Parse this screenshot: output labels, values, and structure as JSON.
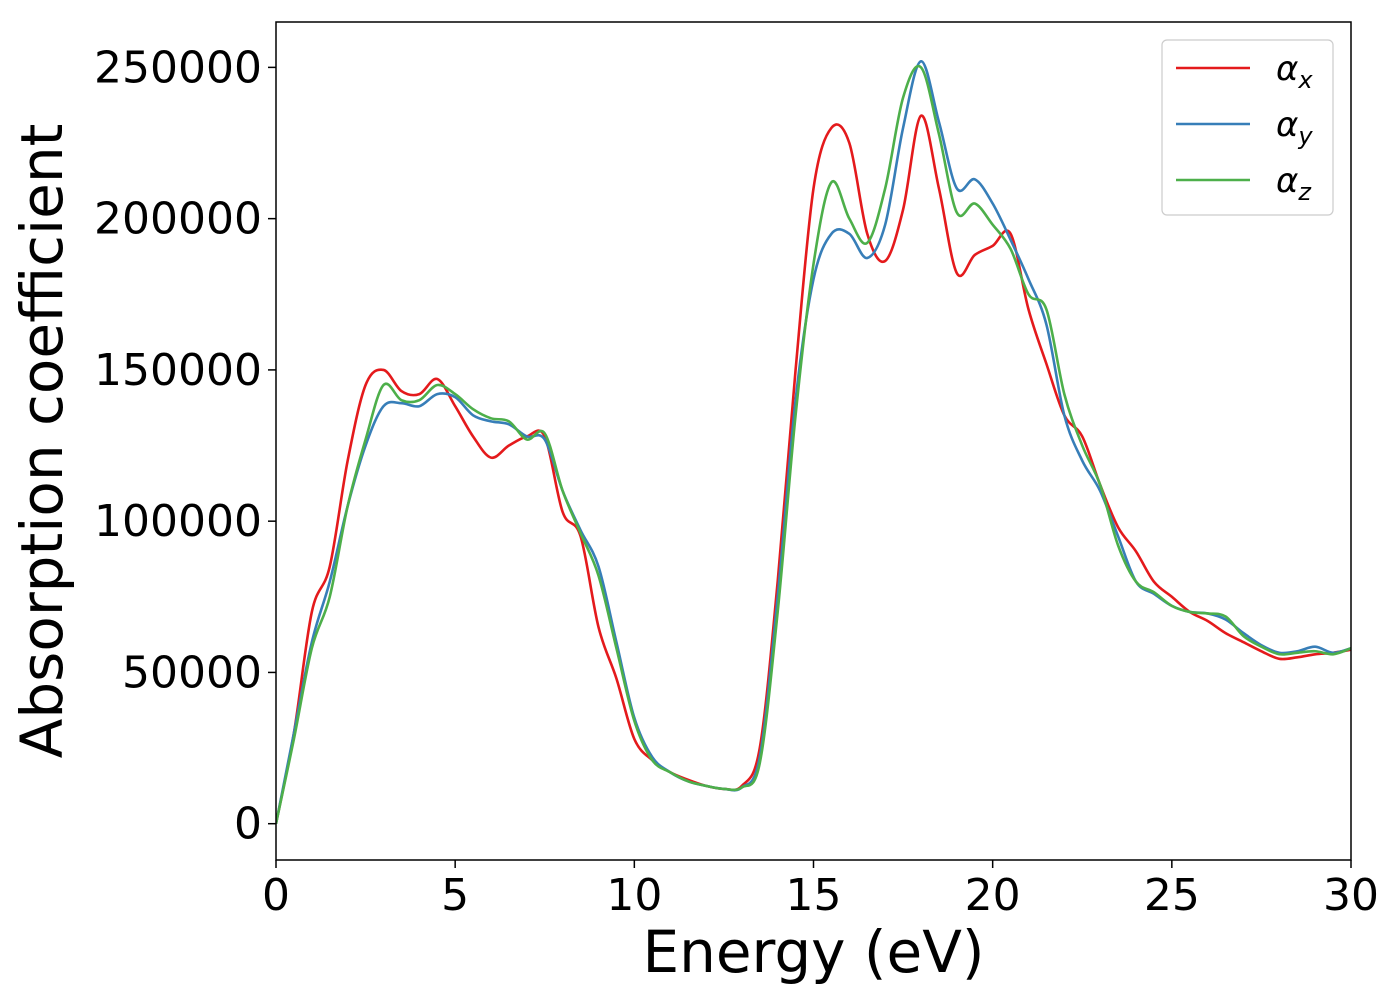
{
  "chart_data": {
    "type": "line",
    "xlabel": "Energy (eV)",
    "ylabel": "Absorption coefficient",
    "xlim": [
      0,
      30
    ],
    "ylim": [
      -12000,
      265000
    ],
    "xticks": [
      0,
      5,
      10,
      15,
      20,
      25,
      30
    ],
    "xtick_labels": [
      "0",
      "5",
      "10",
      "15",
      "20",
      "25",
      "30"
    ],
    "yticks": [
      0,
      50000,
      100000,
      150000,
      200000,
      250000
    ],
    "ytick_labels": [
      "0",
      "50000",
      "100000",
      "150000",
      "200000",
      "250000"
    ],
    "grid": false,
    "legend_position": "top-right",
    "series": [
      {
        "name": "α",
        "subscript": "x",
        "color": "#e41a1c",
        "x": [
          0,
          0.5,
          1,
          1.5,
          2,
          2.5,
          3,
          3.5,
          4,
          4.5,
          5,
          5.5,
          6,
          6.5,
          7,
          7.5,
          8,
          8.5,
          9,
          9.5,
          10,
          10.5,
          11,
          11.5,
          12,
          12.5,
          13,
          13.5,
          14,
          14.5,
          15,
          15.5,
          16,
          16.5,
          17,
          17.5,
          18,
          18.5,
          19,
          19.5,
          20,
          20.5,
          21,
          21.5,
          22,
          22.5,
          23,
          23.5,
          24,
          24.5,
          25,
          25.5,
          26,
          26.5,
          27,
          27.5,
          28,
          28.5,
          29,
          29.5,
          30
        ],
        "y": [
          0,
          30000,
          70000,
          85000,
          120000,
          145000,
          150000,
          143000,
          142000,
          147000,
          138000,
          128000,
          121000,
          125000,
          128000,
          128000,
          103000,
          95000,
          65000,
          48000,
          28000,
          21000,
          17000,
          14500,
          12500,
          11500,
          12500,
          25000,
          80000,
          150000,
          210000,
          230000,
          225000,
          195000,
          186000,
          203000,
          234000,
          210000,
          182000,
          188000,
          191000,
          195000,
          170000,
          152000,
          135000,
          128000,
          112000,
          98000,
          90000,
          80000,
          75000,
          70000,
          67000,
          63000,
          60000,
          57000,
          54500,
          55000,
          56000,
          56500,
          57500
        ]
      },
      {
        "name": "α",
        "subscript": "y",
        "color": "#377eb8",
        "x": [
          0,
          0.5,
          1,
          1.5,
          2,
          2.5,
          3,
          3.5,
          4,
          4.5,
          5,
          5.5,
          6,
          6.5,
          7,
          7.5,
          8,
          8.5,
          9,
          9.5,
          10,
          10.5,
          11,
          11.5,
          12,
          12.5,
          13,
          13.5,
          14,
          14.5,
          15,
          15.5,
          16,
          16.5,
          17,
          17.5,
          18,
          18.5,
          19,
          19.5,
          20,
          20.5,
          21,
          21.5,
          22,
          22.5,
          23,
          23.5,
          24,
          24.5,
          25,
          25.5,
          26,
          26.5,
          27,
          27.5,
          28,
          28.5,
          29,
          29.5,
          30
        ],
        "y": [
          0,
          30000,
          60000,
          80000,
          105000,
          125000,
          138000,
          139000,
          138000,
          142000,
          141000,
          135000,
          133000,
          132000,
          128000,
          127000,
          110000,
          97000,
          85000,
          60000,
          35000,
          22000,
          17000,
          14000,
          12500,
          11500,
          12000,
          22000,
          75000,
          140000,
          180000,
          195000,
          195000,
          187000,
          198000,
          230000,
          252000,
          232000,
          210000,
          213000,
          205000,
          193000,
          180000,
          165000,
          135000,
          120000,
          110000,
          95000,
          80000,
          76000,
          72000,
          70000,
          69500,
          67500,
          63000,
          59000,
          56500,
          57000,
          58500,
          56500,
          58000
        ]
      },
      {
        "name": "α",
        "subscript": "z",
        "color": "#4daf4a",
        "x": [
          0,
          0.5,
          1,
          1.5,
          2,
          2.5,
          3,
          3.5,
          4,
          4.5,
          5,
          5.5,
          6,
          6.5,
          7,
          7.5,
          8,
          8.5,
          9,
          9.5,
          10,
          10.5,
          11,
          11.5,
          12,
          12.5,
          13,
          13.5,
          14,
          14.5,
          15,
          15.5,
          16,
          16.5,
          17,
          17.5,
          18,
          18.5,
          19,
          19.5,
          20,
          20.5,
          21,
          21.5,
          22,
          22.5,
          23,
          23.5,
          24,
          24.5,
          25,
          25.5,
          26,
          26.5,
          27,
          27.5,
          28,
          28.5,
          29,
          29.5,
          30
        ],
        "y": [
          0,
          28000,
          58000,
          75000,
          105000,
          127000,
          145000,
          140000,
          140000,
          145000,
          142000,
          137000,
          134000,
          133000,
          127000,
          129000,
          110000,
          96000,
          82000,
          58000,
          34000,
          21000,
          17000,
          14000,
          12500,
          11500,
          12000,
          20000,
          70000,
          135000,
          185000,
          212000,
          200000,
          192000,
          210000,
          240000,
          250000,
          228000,
          202000,
          205000,
          198000,
          190000,
          175000,
          170000,
          142000,
          125000,
          112000,
          92000,
          80000,
          76500,
          72000,
          70000,
          69500,
          68500,
          62000,
          58500,
          56000,
          56500,
          57000,
          56000,
          58000
        ]
      }
    ]
  }
}
